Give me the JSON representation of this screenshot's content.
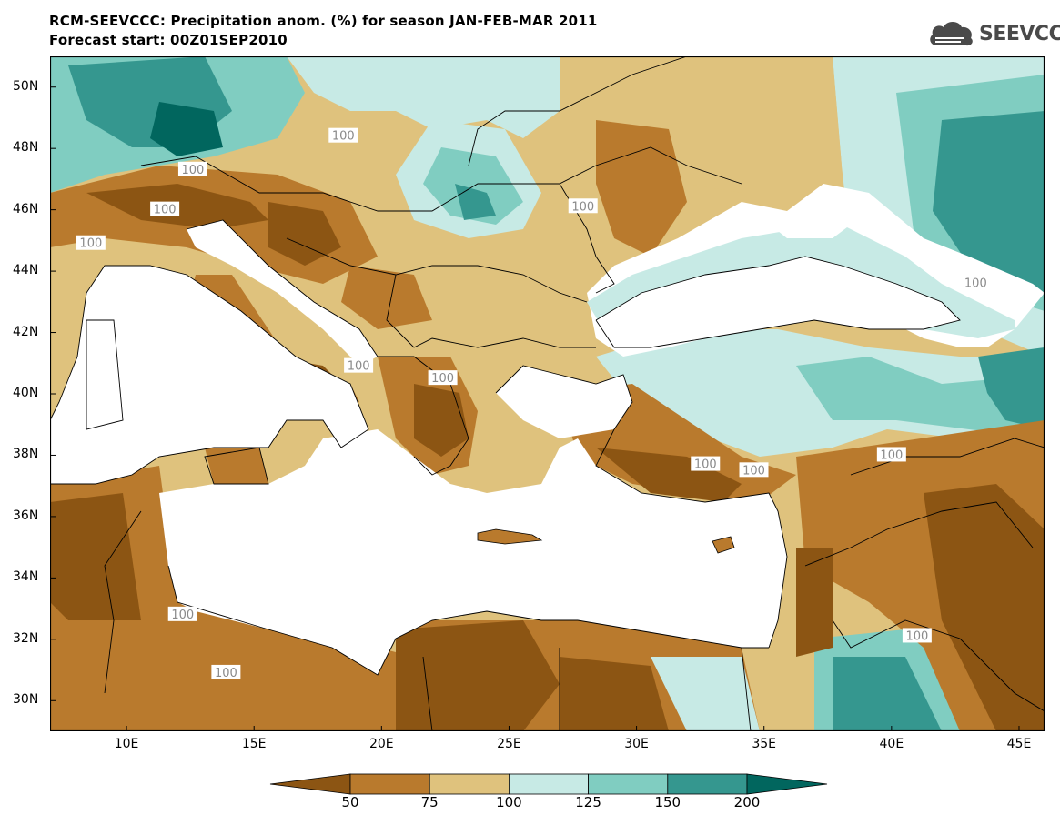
{
  "title": {
    "line1": "RCM-SEEVCCC: Precipitation anom. (%) for season JAN-FEB-MAR 2011",
    "line2": "Forecast start: 00Z01SEP2010"
  },
  "logo": {
    "text": "SEEVCCC",
    "icon": "cloud-icon",
    "color": "#4a4a4a"
  },
  "map": {
    "projection": "lat-lon",
    "lon_range": [
      7,
      46
    ],
    "lat_range": [
      29,
      51
    ],
    "lat_ticks": [
      {
        "value": 50,
        "label": "50N"
      },
      {
        "value": 48,
        "label": "48N"
      },
      {
        "value": 46,
        "label": "46N"
      },
      {
        "value": 44,
        "label": "44N"
      },
      {
        "value": 42,
        "label": "42N"
      },
      {
        "value": 40,
        "label": "40N"
      },
      {
        "value": 38,
        "label": "38N"
      },
      {
        "value": 36,
        "label": "36N"
      },
      {
        "value": 34,
        "label": "34N"
      },
      {
        "value": 32,
        "label": "32N"
      },
      {
        "value": 30,
        "label": "30N"
      }
    ],
    "lon_ticks": [
      {
        "value": 10,
        "label": "10E"
      },
      {
        "value": 15,
        "label": "15E"
      },
      {
        "value": 20,
        "label": "20E"
      },
      {
        "value": 25,
        "label": "25E"
      },
      {
        "value": 30,
        "label": "30E"
      },
      {
        "value": 35,
        "label": "35E"
      },
      {
        "value": 40,
        "label": "40E"
      },
      {
        "value": 45,
        "label": "45E"
      }
    ],
    "contour_labels": [
      {
        "text": "100",
        "lon": 18.5,
        "lat": 48.4
      },
      {
        "text": "100",
        "lon": 12.6,
        "lat": 47.3
      },
      {
        "text": "100",
        "lon": 11.5,
        "lat": 46.0
      },
      {
        "text": "100",
        "lon": 8.6,
        "lat": 44.9
      },
      {
        "text": "100",
        "lon": 27.9,
        "lat": 46.1
      },
      {
        "text": "100",
        "lon": 43.3,
        "lat": 43.6
      },
      {
        "text": "100",
        "lon": 22.4,
        "lat": 40.5
      },
      {
        "text": "100",
        "lon": 32.7,
        "lat": 37.7
      },
      {
        "text": "100",
        "lon": 34.6,
        "lat": 37.5
      },
      {
        "text": "100",
        "lon": 40.0,
        "lat": 38.0
      },
      {
        "text": "100",
        "lon": 12.2,
        "lat": 32.8
      },
      {
        "text": "100",
        "lon": 41.0,
        "lat": 32.1
      },
      {
        "text": "100",
        "lon": 19.1,
        "lat": 40.9
      },
      {
        "text": "100",
        "lon": 13.9,
        "lat": 30.9
      }
    ]
  },
  "colorbar": {
    "colors": [
      "#8c5513",
      "#b97a2d",
      "#dfc27d",
      "#c7eae5",
      "#80cdc1",
      "#35978f",
      "#01665e"
    ],
    "tick_labels": [
      "50",
      "75",
      "100",
      "125",
      "150",
      "200"
    ]
  },
  "colors": {
    "land_gray": "#f6e8c3",
    "sea": "#ffffff",
    "border": "#000000",
    "contour_gray": "#a6a6a6"
  }
}
